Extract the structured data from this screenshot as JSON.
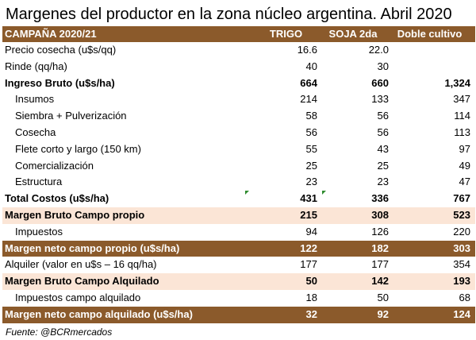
{
  "title": "Margenes del productor en la zona núcleo argentina. Abril 2020",
  "header": [
    "CAMPAÑA 2020/21",
    "TRIGO",
    "SOJA 2da",
    "Doble cultivo"
  ],
  "rows": [
    {
      "label": "Precio cosecha (u$s/qq)",
      "v": [
        "16.6",
        "22.0",
        ""
      ],
      "style": "plain"
    },
    {
      "label": "Rinde (qq/ha)",
      "v": [
        "40",
        "30",
        ""
      ],
      "style": "plain"
    },
    {
      "label": "Ingreso Bruto (u$s/ha)",
      "v": [
        "664",
        "660",
        "1,324"
      ],
      "style": "bold"
    },
    {
      "label": "Insumos",
      "v": [
        "214",
        "133",
        "347"
      ],
      "style": "indent"
    },
    {
      "label": "Siembra + Pulverización",
      "v": [
        "58",
        "56",
        "114"
      ],
      "style": "indent"
    },
    {
      "label": "Cosecha",
      "v": [
        "56",
        "56",
        "113"
      ],
      "style": "indent"
    },
    {
      "label": "Flete corto y largo (150 km)",
      "v": [
        "55",
        "43",
        "97"
      ],
      "style": "indent"
    },
    {
      "label": "Comercialización",
      "v": [
        "25",
        "25",
        "49"
      ],
      "style": "indent"
    },
    {
      "label": "Estructura",
      "v": [
        "23",
        "23",
        "47"
      ],
      "style": "indent"
    },
    {
      "label": "Total Costos (u$s/ha)",
      "v": [
        "431",
        "336",
        "767"
      ],
      "style": "bold"
    },
    {
      "label": "Margen Bruto Campo propio",
      "v": [
        "215",
        "308",
        "523"
      ],
      "style": "peach"
    },
    {
      "label": "Impuestos",
      "v": [
        "94",
        "126",
        "220"
      ],
      "style": "indent"
    },
    {
      "label": "Margen neto campo propio (u$s/ha)",
      "v": [
        "122",
        "182",
        "303"
      ],
      "style": "brown"
    },
    {
      "label": "Alquiler (valor en u$s – 16 qq/ha)",
      "v": [
        "177",
        "177",
        "354"
      ],
      "style": "plain"
    },
    {
      "label": "Margen Bruto Campo Alquilado",
      "v": [
        "50",
        "142",
        "193"
      ],
      "style": "peach"
    },
    {
      "label": "Impuestos campo alquilado",
      "v": [
        "18",
        "50",
        "68"
      ],
      "style": "indent"
    },
    {
      "label": "Margen neto campo alquilado (u$s/ha)",
      "v": [
        "32",
        "92",
        "124"
      ],
      "style": "brown"
    }
  ],
  "source": "Fuente: @BCRmercados",
  "colors": {
    "header_bg": "#8b5a2b",
    "highlight_bg": "#fbe5d6",
    "marker": "#2e8b2e"
  }
}
